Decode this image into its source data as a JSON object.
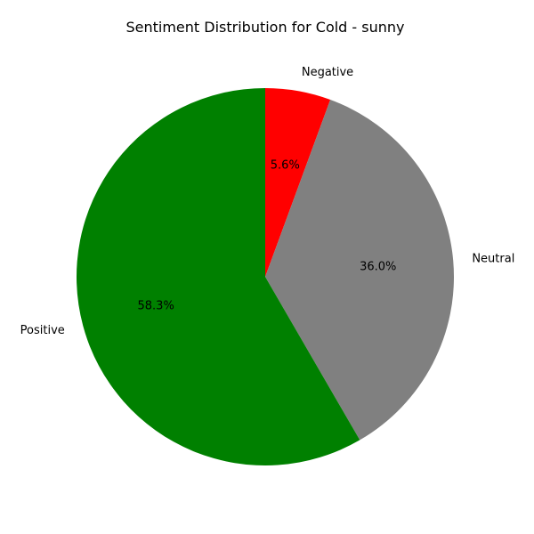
{
  "chart_data": {
    "type": "pie",
    "title": "Sentiment Distribution for Cold - sunny",
    "slices": [
      {
        "label": "Negative",
        "value": 5.6,
        "pct_label": "5.6%",
        "color": "#ff0000"
      },
      {
        "label": "Neutral",
        "value": 36.0,
        "pct_label": "36.0%",
        "color": "#808080"
      },
      {
        "label": "Positive",
        "value": 58.3,
        "pct_label": "58.3%",
        "color": "#008000"
      }
    ],
    "start_angle_deg": 90,
    "direction": "clockwise"
  }
}
